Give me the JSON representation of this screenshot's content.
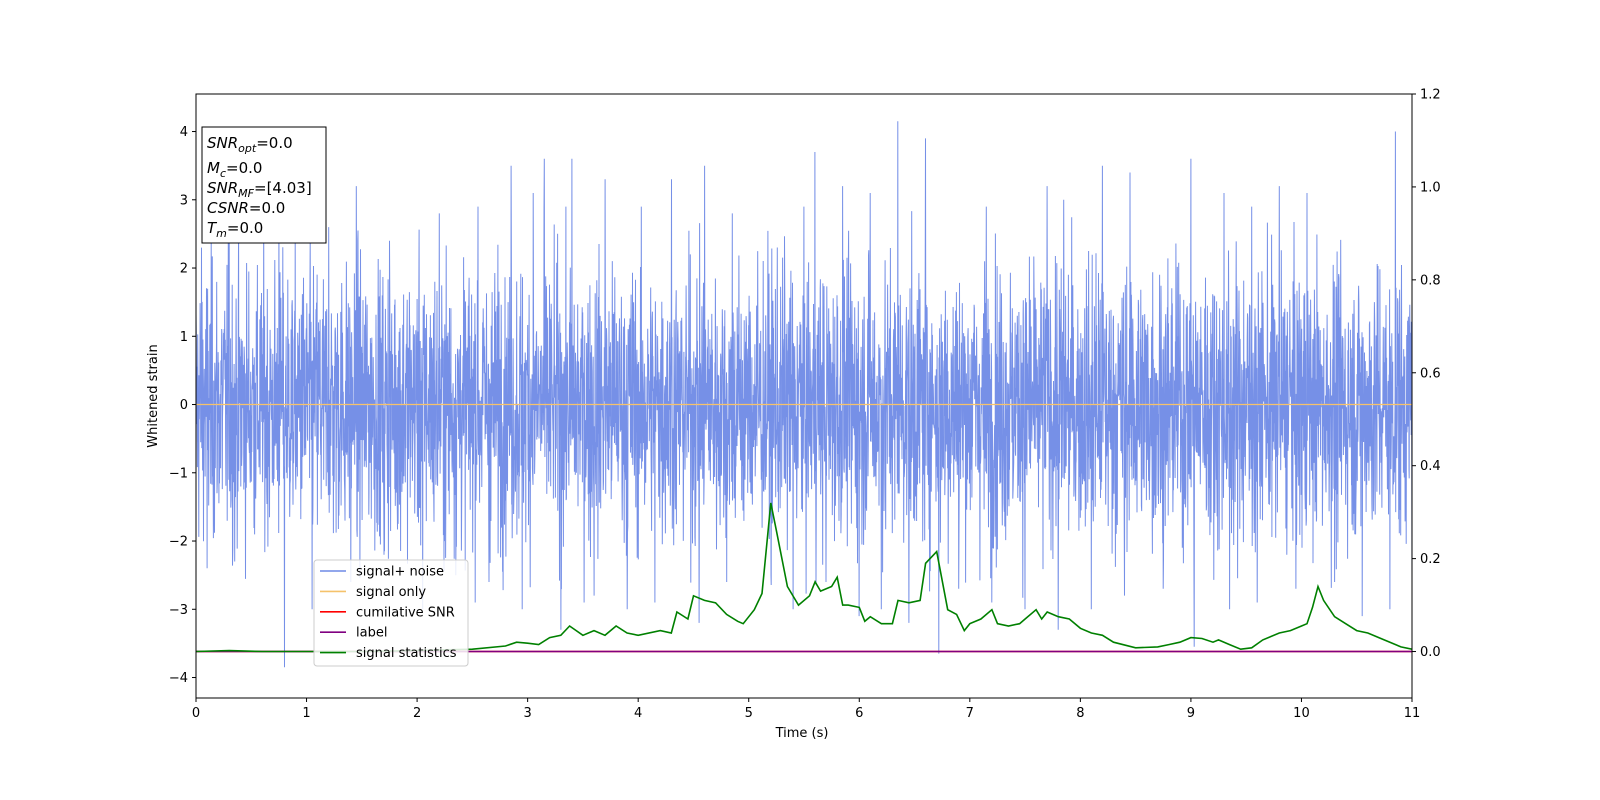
{
  "chart_data": {
    "type": "line",
    "xlabel": "Time (s)",
    "ylabel": "Whitened strain",
    "xlim": [
      0,
      11
    ],
    "ylim": [
      -4.3,
      4.55
    ],
    "y2lim": [
      -0.1,
      1.2
    ],
    "x_ticks": [
      "0",
      "1",
      "2",
      "3",
      "4",
      "5",
      "6",
      "7",
      "8",
      "9",
      "10",
      "11"
    ],
    "y_ticks": [
      "−4",
      "−3",
      "−2",
      "−1",
      "0",
      "1",
      "2",
      "3",
      "4"
    ],
    "y2_ticks": [
      "0.0",
      "0.2",
      "0.4",
      "0.6",
      "0.8",
      "1.0",
      "1.2"
    ],
    "grid": false,
    "legend_position": "lower-left",
    "info_box": [
      {
        "base": "SNR",
        "sub": "opt",
        "rest": "=0.0"
      },
      {
        "base": "M",
        "sub": "c",
        "rest": "=0.0"
      },
      {
        "base": "SNR",
        "sub": "MF",
        "rest": "=[4.03]"
      },
      {
        "base": "CSNR",
        "sub": "",
        "rest": "=0.0"
      },
      {
        "base": "T",
        "sub": "m",
        "rest": "=0.0"
      }
    ],
    "noise_spikes": {
      "upper": [
        [
          0.05,
          2.3
        ],
        [
          0.3,
          2.6
        ],
        [
          0.75,
          3.1
        ],
        [
          1.2,
          2.6
        ],
        [
          1.45,
          3.2
        ],
        [
          1.75,
          2.4
        ],
        [
          2.2,
          2.8
        ],
        [
          2.55,
          2.9
        ],
        [
          2.85,
          3.5
        ],
        [
          3.05,
          3.1
        ],
        [
          3.15,
          3.6
        ],
        [
          3.4,
          3.6
        ],
        [
          3.7,
          3.3
        ],
        [
          3.9,
          3.9
        ],
        [
          4.3,
          3.3
        ],
        [
          4.6,
          3.5
        ],
        [
          4.85,
          2.8
        ],
        [
          5.2,
          3.0
        ],
        [
          5.6,
          3.7
        ],
        [
          5.85,
          3.2
        ],
        [
          6.1,
          3.1
        ],
        [
          6.35,
          4.15
        ],
        [
          6.6,
          3.9
        ],
        [
          6.9,
          3.0
        ],
        [
          7.15,
          2.9
        ],
        [
          7.5,
          3.0
        ],
        [
          7.7,
          3.2
        ],
        [
          7.85,
          3.0
        ],
        [
          8.2,
          3.5
        ],
        [
          8.45,
          3.4
        ],
        [
          8.75,
          3.2
        ],
        [
          9.0,
          3.6
        ],
        [
          9.3,
          3.1
        ],
        [
          9.55,
          2.9
        ],
        [
          9.8,
          3.2
        ],
        [
          10.05,
          3.1
        ],
        [
          10.3,
          3.0
        ],
        [
          10.55,
          3.2
        ],
        [
          10.85,
          4.0
        ],
        [
          11.0,
          3.4
        ]
      ],
      "lower": [
        [
          0.1,
          -2.4
        ],
        [
          0.35,
          -2.3
        ],
        [
          0.8,
          -3.85
        ],
        [
          1.05,
          -3.0
        ],
        [
          1.4,
          -2.6
        ],
        [
          1.7,
          -2.2
        ],
        [
          2.05,
          -3.0
        ],
        [
          2.35,
          -2.5
        ],
        [
          2.65,
          -2.6
        ],
        [
          2.95,
          -3.0
        ],
        [
          3.3,
          -3.3
        ],
        [
          3.6,
          -2.8
        ],
        [
          3.9,
          -3.0
        ],
        [
          4.15,
          -2.9
        ],
        [
          4.55,
          -3.2
        ],
        [
          4.8,
          -2.6
        ],
        [
          5.2,
          -2.5
        ],
        [
          5.4,
          -3.0
        ],
        [
          5.7,
          -2.6
        ],
        [
          6.0,
          -3.1
        ],
        [
          6.2,
          -3.0
        ],
        [
          6.45,
          -3.2
        ],
        [
          6.72,
          -3.65
        ],
        [
          6.9,
          -2.7
        ],
        [
          7.2,
          -2.9
        ],
        [
          7.5,
          -3.0
        ],
        [
          7.8,
          -3.3
        ],
        [
          8.1,
          -3.0
        ],
        [
          8.4,
          -2.8
        ],
        [
          8.75,
          -2.7
        ],
        [
          9.03,
          -3.55
        ],
        [
          9.35,
          -3.0
        ],
        [
          9.6,
          -2.9
        ],
        [
          9.95,
          -2.7
        ],
        [
          10.3,
          -2.6
        ],
        [
          10.55,
          -3.1
        ],
        [
          10.8,
          -3.0
        ],
        [
          11.0,
          -2.6
        ]
      ]
    },
    "series": [
      {
        "name": "signal+ noise",
        "color": "#6f8ae6",
        "kind": "noise",
        "amplitude": 1.0
      },
      {
        "name": "signal only",
        "color": "#f5c26b",
        "axis": "left",
        "x": [
          0,
          11
        ],
        "y": [
          0,
          0
        ]
      },
      {
        "name": "cumilative SNR",
        "color": "#ff0000",
        "axis": "right",
        "x": [
          0,
          11
        ],
        "y": [
          0,
          0
        ]
      },
      {
        "name": "label",
        "color": "#800080",
        "axis": "right",
        "x": [
          0,
          11
        ],
        "y": [
          0,
          0
        ]
      },
      {
        "name": "signal statistics",
        "color": "#008000",
        "axis": "right",
        "x": [
          0,
          0.3,
          0.6,
          1.0,
          1.5,
          2.0,
          2.5,
          2.8,
          2.9,
          3.0,
          3.1,
          3.2,
          3.3,
          3.38,
          3.5,
          3.6,
          3.7,
          3.8,
          3.9,
          4.0,
          4.2,
          4.3,
          4.35,
          4.45,
          4.5,
          4.6,
          4.7,
          4.8,
          4.9,
          4.95,
          5.05,
          5.12,
          5.2,
          5.25,
          5.35,
          5.45,
          5.55,
          5.6,
          5.65,
          5.75,
          5.8,
          5.85,
          5.9,
          6.0,
          6.05,
          6.1,
          6.2,
          6.3,
          6.35,
          6.45,
          6.55,
          6.6,
          6.7,
          6.8,
          6.88,
          6.95,
          7.0,
          7.1,
          7.2,
          7.25,
          7.35,
          7.45,
          7.5,
          7.6,
          7.65,
          7.7,
          7.8,
          7.9,
          8.0,
          8.1,
          8.2,
          8.3,
          8.5,
          8.7,
          8.8,
          8.9,
          9.0,
          9.1,
          9.2,
          9.25,
          9.35,
          9.45,
          9.55,
          9.65,
          9.8,
          9.9,
          10.0,
          10.05,
          10.1,
          10.15,
          10.2,
          10.3,
          10.4,
          10.5,
          10.6,
          10.7,
          10.8,
          10.9,
          11.0
        ],
        "y": [
          0.0,
          0.002,
          0.0,
          0.0,
          0.0,
          0.002,
          0.005,
          0.012,
          0.02,
          0.018,
          0.015,
          0.03,
          0.035,
          0.055,
          0.035,
          0.045,
          0.035,
          0.055,
          0.04,
          0.035,
          0.045,
          0.04,
          0.085,
          0.07,
          0.12,
          0.11,
          0.105,
          0.08,
          0.065,
          0.06,
          0.09,
          0.125,
          0.32,
          0.26,
          0.14,
          0.1,
          0.12,
          0.15,
          0.13,
          0.14,
          0.16,
          0.1,
          0.1,
          0.095,
          0.065,
          0.075,
          0.06,
          0.06,
          0.11,
          0.105,
          0.11,
          0.19,
          0.215,
          0.09,
          0.08,
          0.045,
          0.06,
          0.07,
          0.09,
          0.06,
          0.055,
          0.06,
          0.07,
          0.09,
          0.07,
          0.085,
          0.075,
          0.07,
          0.05,
          0.04,
          0.035,
          0.02,
          0.008,
          0.01,
          0.015,
          0.02,
          0.03,
          0.028,
          0.02,
          0.025,
          0.015,
          0.005,
          0.008,
          0.025,
          0.04,
          0.045,
          0.055,
          0.06,
          0.095,
          0.14,
          0.11,
          0.075,
          0.06,
          0.045,
          0.04,
          0.03,
          0.02,
          0.01,
          0.005
        ]
      }
    ]
  }
}
